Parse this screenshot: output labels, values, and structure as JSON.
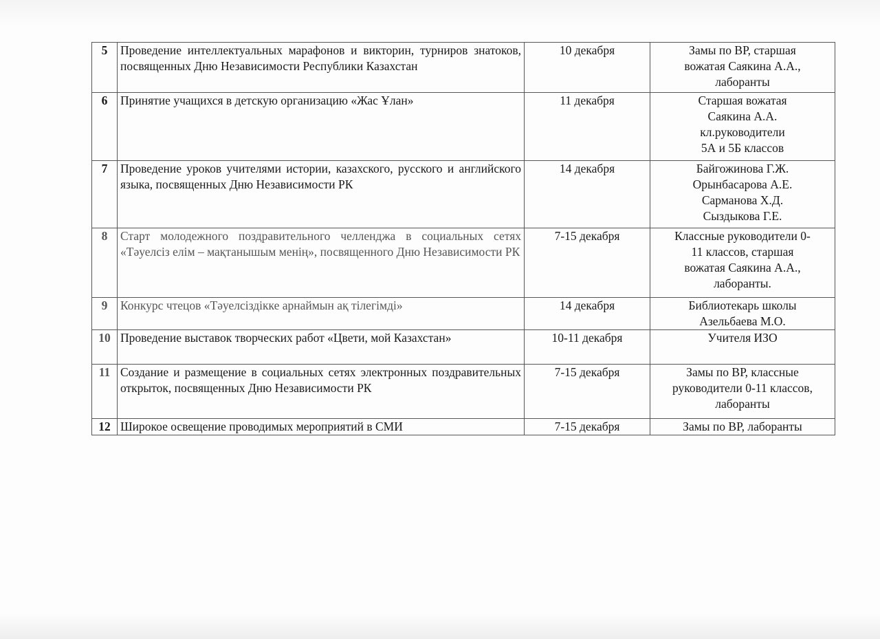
{
  "rows": [
    {
      "num": "5",
      "desc": "Проведение интеллектуальных марафонов и викторин, турниров знатоков, посвященных Дню Независимости Республики Казахстан",
      "date": "10 декабря",
      "resp": [
        "Замы по ВР, старшая",
        "вожатая Саякина А.А.,",
        "лаборанты"
      ]
    },
    {
      "num": "6",
      "desc": "Принятие учащихся в детскую организацию «Жас Ұлан»",
      "date": "11 декабря",
      "resp": [
        "Старшая вожатая",
        "Саякина А.А.",
        "кл.руководители",
        "5А и 5Б классов"
      ]
    },
    {
      "num": "7",
      "desc": "Проведение уроков учителями истории, казахского, русского и английского языка, посвященных Дню Независимости РК",
      "date": "14 декабря",
      "resp": [
        "Байгожинова Г.Ж.",
        "Орынбасарова А.Е.",
        "Сарманова Х.Д.",
        "Сыздыкова Г.Е."
      ]
    },
    {
      "num": "8",
      "desc": "Старт молодежного поздравительного челленджа в социальных сетях «Тәуелсіз елім – мақтанышым менің», посвященного Дню Независимости РК",
      "date": "7-15 декабря",
      "resp": [
        "Классные руководители 0-",
        "11 классов, старшая",
        "вожатая Саякина А.А.,",
        "лаборанты."
      ]
    },
    {
      "num": "9",
      "desc": "Конкурс чтецов «Тәуелсіздікке арнаймын ақ тілегімді»",
      "date": "14 декабря",
      "resp": [
        "Библиотекарь школы",
        "Азельбаева М.О."
      ]
    },
    {
      "num": "10",
      "desc": "Проведение выставок творческих работ «Цвети, мой Казахстан»",
      "date": "10-11 декабря",
      "resp": [
        "Учителя ИЗО"
      ]
    },
    {
      "num": "11",
      "desc": "Создание и размещение в социальных сетях электронных поздравительных открыток, посвященных Дню Независимости РК",
      "date": "7-15 декабря",
      "resp": [
        "Замы по ВР, классные",
        "руководители 0-11 классов,",
        "лаборанты"
      ]
    },
    {
      "num": "12",
      "desc": "Широкое освещение проводимых мероприятий в СМИ",
      "date": "7-15 декабря",
      "resp": [
        "Замы по ВР, лаборанты"
      ]
    }
  ]
}
